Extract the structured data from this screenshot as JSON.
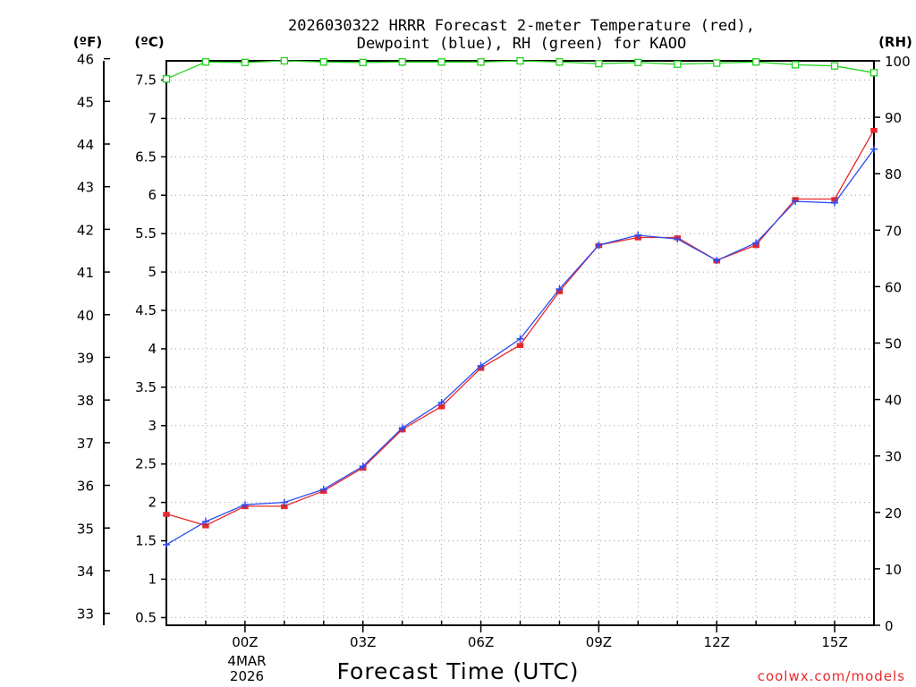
{
  "chart_data": {
    "type": "line",
    "title_line1": "2026030322 HRRR Forecast 2-meter Temperature (red),",
    "title_line2": "Dewpoint (blue), RH (green) for KAOO",
    "xlabel": "Forecast Time (UTC)",
    "credit": "coolwx.com/models",
    "left_f_label": "(ºF)",
    "left_c_label": "(ºC)",
    "right_label": "(RH)",
    "date_label_day": "4MAR",
    "date_label_year": "2026",
    "x_hours_range": [
      -2,
      16
    ],
    "x_ticks": [
      {
        "hour": 0,
        "label": "00Z"
      },
      {
        "hour": 3,
        "label": "03Z"
      },
      {
        "hour": 6,
        "label": "06Z"
      },
      {
        "hour": 9,
        "label": "09Z"
      },
      {
        "hour": 12,
        "label": "12Z"
      },
      {
        "hour": 15,
        "label": "15Z"
      }
    ],
    "y_celsius_range": [
      0.4,
      7.75
    ],
    "y_celsius_ticks": [
      "0.5",
      "1",
      "1.5",
      "2",
      "2.5",
      "3",
      "3.5",
      "4",
      "4.5",
      "5",
      "5.5",
      "6",
      "6.5",
      "7",
      "7.5"
    ],
    "y_fahrenheit_ticks": [
      "33",
      "34",
      "35",
      "36",
      "37",
      "38",
      "39",
      "40",
      "41",
      "42",
      "43",
      "44",
      "45",
      "46"
    ],
    "y_rh_range": [
      0,
      100
    ],
    "y_rh_ticks": [
      "0",
      "10",
      "20",
      "30",
      "40",
      "50",
      "60",
      "70",
      "80",
      "90",
      "100"
    ],
    "series": [
      {
        "name": "Temperature",
        "unit": "°C",
        "color": "#e8282b",
        "x": [
          -2,
          -1,
          0,
          1,
          2,
          3,
          4,
          5,
          6,
          7,
          8,
          9,
          10,
          11,
          12,
          13,
          14,
          15,
          16
        ],
        "values": [
          1.85,
          1.7,
          1.95,
          1.95,
          2.15,
          2.45,
          2.95,
          3.25,
          3.75,
          4.05,
          4.75,
          5.35,
          5.45,
          5.45,
          5.15,
          5.35,
          5.95,
          5.95,
          6.85
        ]
      },
      {
        "name": "Dewpoint",
        "unit": "°C",
        "color": "#2d4cf0",
        "x": [
          -2,
          -1,
          0,
          1,
          2,
          3,
          4,
          5,
          6,
          7,
          8,
          9,
          10,
          11,
          12,
          13,
          14,
          15,
          16
        ],
        "values": [
          1.45,
          1.75,
          1.97,
          2.0,
          2.17,
          2.47,
          2.97,
          3.3,
          3.78,
          4.13,
          4.78,
          5.35,
          5.48,
          5.43,
          5.15,
          5.38,
          5.92,
          5.9,
          6.6
        ]
      },
      {
        "name": "RH",
        "unit": "%",
        "color": "#22d41e",
        "x": [
          -2,
          -1,
          0,
          1,
          2,
          3,
          4,
          5,
          6,
          7,
          8,
          9,
          10,
          11,
          12,
          13,
          14,
          15,
          16
        ],
        "values": [
          96.8,
          99.8,
          99.7,
          100,
          99.8,
          99.7,
          99.8,
          99.8,
          99.8,
          100,
          99.8,
          99.5,
          99.7,
          99.4,
          99.6,
          99.8,
          99.3,
          99.1,
          97.9
        ]
      }
    ]
  }
}
